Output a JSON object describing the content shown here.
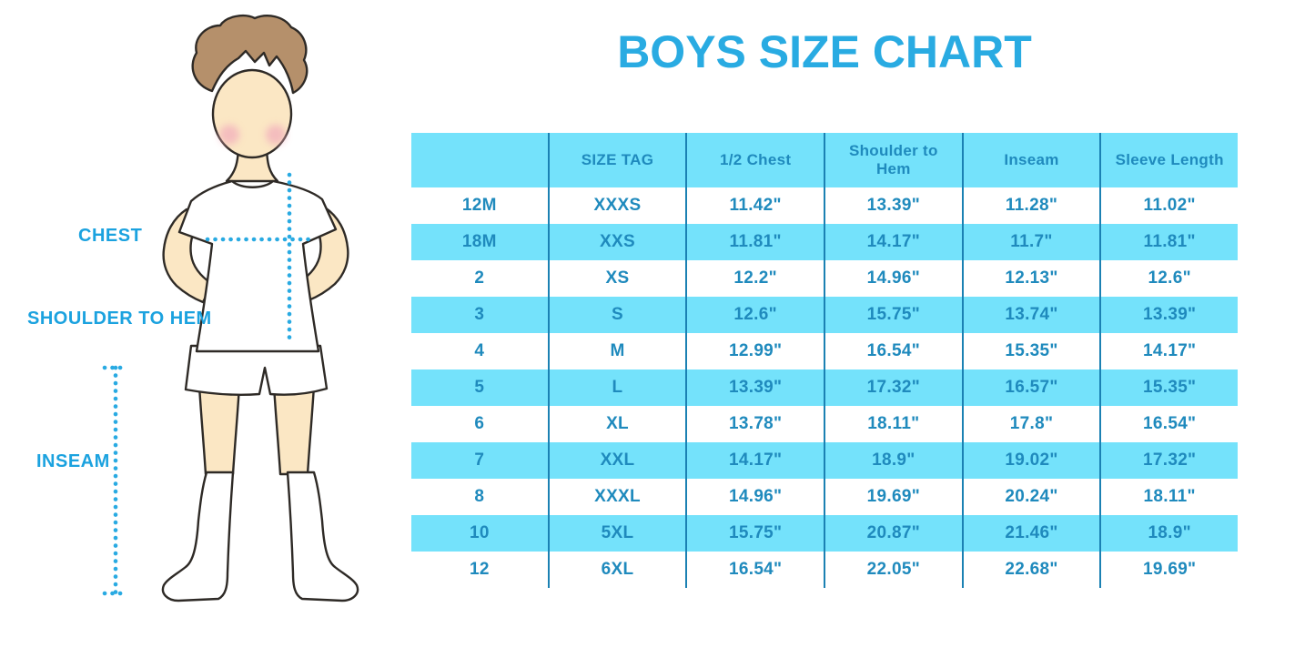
{
  "title": "BOYS SIZE CHART",
  "figure": {
    "labels": {
      "chest": "CHEST",
      "shoulder_to_hem": "SHOULDER TO HEM",
      "inseam": "INSEAM"
    }
  },
  "chart_data": {
    "type": "table",
    "columns": [
      "",
      "SIZE TAG",
      "1/2 Chest",
      "Shoulder to Hem",
      "Inseam",
      "Sleeve Length"
    ],
    "rows": [
      [
        "12M",
        "XXXS",
        "11.42\"",
        "13.39\"",
        "11.28\"",
        "11.02\""
      ],
      [
        "18M",
        "XXS",
        "11.81\"",
        "14.17\"",
        "11.7\"",
        "11.81\""
      ],
      [
        "2",
        "XS",
        "12.2\"",
        "14.96\"",
        "12.13\"",
        "12.6\""
      ],
      [
        "3",
        "S",
        "12.6\"",
        "15.75\"",
        "13.74\"",
        "13.39\""
      ],
      [
        "4",
        "M",
        "12.99\"",
        "16.54\"",
        "15.35\"",
        "14.17\""
      ],
      [
        "5",
        "L",
        "13.39\"",
        "17.32\"",
        "16.57\"",
        "15.35\""
      ],
      [
        "6",
        "XL",
        "13.78\"",
        "18.11\"",
        "17.8\"",
        "16.54\""
      ],
      [
        "7",
        "XXL",
        "14.17\"",
        "18.9\"",
        "19.02\"",
        "17.32\""
      ],
      [
        "8",
        "XXXL",
        "14.96\"",
        "19.69\"",
        "20.24\"",
        "18.11\""
      ],
      [
        "10",
        "5XL",
        "15.75\"",
        "20.87\"",
        "21.46\"",
        "18.9\""
      ],
      [
        "12",
        "6XL",
        "16.54\"",
        "22.05\"",
        "22.68\"",
        "19.69\""
      ]
    ]
  },
  "colors": {
    "title_blue": "#29ABE2",
    "label_blue": "#1BA2DF",
    "table_text_blue": "#1F8ABD",
    "table_stripe": "#74E2FB",
    "table_divider": "#1B81B3",
    "dotted_line": "#29AAE2",
    "skin": "#FBE7C4",
    "hair": "#B5906B",
    "cheek": "#F2AFBC",
    "outline": "#2E2A26"
  }
}
